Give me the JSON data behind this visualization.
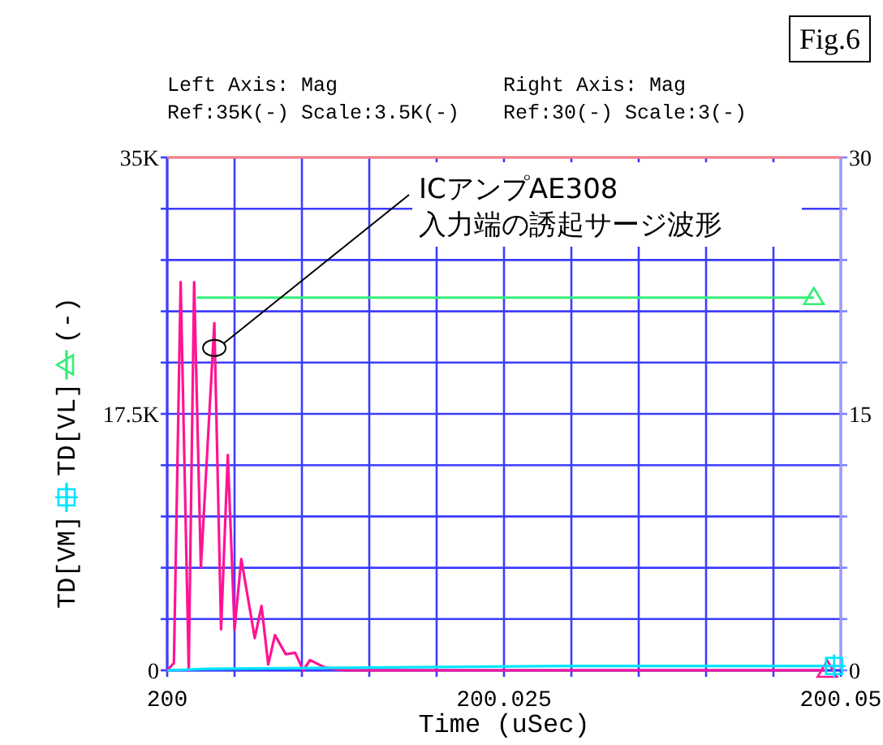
{
  "chart_data": {
    "type": "line",
    "annotations": [
      "Fig.6",
      "Left Axis: Mag\nRef:35K(-) Scale:3.5K(-)",
      "Right Axis: Mag\nRef:30(-) Scale:3(-)",
      {
        "text": "ICアンプAE308\n入力端の誘起サージ波形",
        "x": 200.0035,
        "y": 22000
      }
    ],
    "xlabel": "Time (uSec)",
    "ylabel": "(-)",
    "xlim": [
      200,
      200.05
    ],
    "ylim": [
      0,
      35000
    ],
    "y2lim": [
      0,
      30
    ],
    "xticks": [
      200,
      {
        "value": 200.005,
        "label": null
      },
      {
        "value": 200.01,
        "label": null
      },
      {
        "value": 200.015,
        "label": null
      },
      {
        "value": 200.02,
        "label": null
      },
      200.025,
      {
        "value": 200.03,
        "label": null
      },
      {
        "value": 200.035,
        "label": null
      },
      {
        "value": 200.04,
        "label": null
      },
      {
        "value": 200.045,
        "label": null
      },
      200.05
    ],
    "yticks": [
      0,
      {
        "value": 3500,
        "label": null
      },
      {
        "value": 7000,
        "label": null
      },
      {
        "value": 10500,
        "label": null
      },
      {
        "value": 14000,
        "label": null
      },
      {
        "value": 17500,
        "label": "17.5K"
      },
      {
        "value": 21000,
        "label": null
      },
      {
        "value": 24500,
        "label": null
      },
      {
        "value": 28000,
        "label": null
      },
      {
        "value": 31500,
        "label": null
      },
      {
        "value": 35000,
        "label": "35K"
      }
    ],
    "y2ticks": [
      0,
      {
        "value": 3,
        "label": null
      },
      {
        "value": 6,
        "label": null
      },
      {
        "value": 9,
        "label": null
      },
      {
        "value": 12,
        "label": null
      },
      15,
      {
        "value": 18,
        "label": null
      },
      {
        "value": 21,
        "label": null
      },
      {
        "value": 24,
        "label": null
      },
      {
        "value": 27,
        "label": null
      },
      30
    ],
    "grid": true,
    "legend": "left",
    "ref_lines": [
      {
        "axis": "y",
        "value": 35000,
        "color": "#ff8080"
      }
    ],
    "series": [
      {
        "color": "#ff1493",
        "x": [
          200,
          200.0005,
          200.001,
          200.0016,
          200.002,
          200.0025,
          200.0035,
          200.004,
          200.0045,
          200.005,
          200.0055,
          200.0065,
          200.007,
          200.0075,
          200.008,
          200.0088,
          200.0095,
          200.0101,
          200.0106,
          200.0117,
          200.0131,
          200.0146,
          200.049
        ],
        "values": [
          0,
          500,
          26500,
          0,
          26500,
          7000,
          23700,
          2800,
          14700,
          2800,
          7600,
          2200,
          4400,
          400,
          2400,
          1100,
          1200,
          0,
          700,
          200,
          0,
          0,
          0
        ]
      },
      {
        "name": "TD[VM]",
        "color": "#00e5ff",
        "x": [
          200,
          200.003,
          200.0296,
          200.0495
        ],
        "values": [
          0,
          100,
          300,
          300
        ]
      },
      {
        "name": "TD[VL]",
        "color": "#33ee77",
        "axis": "y2",
        "x": [
          200.0022,
          200.048
        ],
        "values": [
          21.8,
          21.8
        ]
      },
      {
        "type": "scatter",
        "color": "#ff1493",
        "marker": "triangle",
        "x": [
          200.049
        ],
        "values": [
          0
        ]
      },
      {
        "type": "scatter",
        "color": "#00e5ff",
        "marker": "square",
        "x": [
          200.0495
        ],
        "values": [
          300
        ]
      },
      {
        "type": "scatter",
        "color": "#33ee77",
        "marker": "triangle",
        "axis": "y2",
        "x": [
          200.048
        ],
        "values": [
          21.8
        ]
      }
    ]
  }
}
